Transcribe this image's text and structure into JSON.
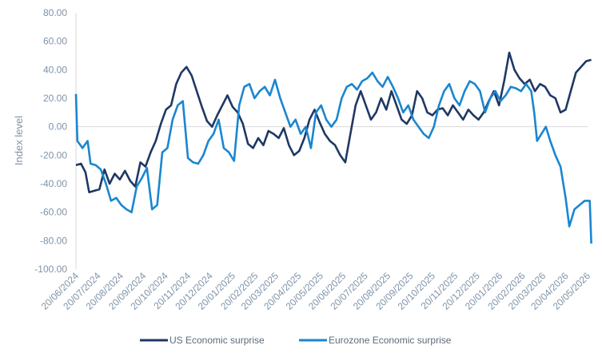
{
  "chart_data": {
    "type": "line",
    "ylabel": "Index level",
    "ylim": [
      -100,
      80
    ],
    "y_ticks": [
      "80.00",
      "60.00",
      "40.00",
      "20.00",
      "0.00",
      "-20.00",
      "-40.00",
      "-60.00",
      "-80.00",
      "-100.00"
    ],
    "y_tick_values": [
      80,
      60,
      40,
      20,
      0,
      -20,
      -40,
      -60,
      -80,
      -100
    ],
    "x_ticks": [
      "20/06/2024",
      "20/07/2024",
      "20/08/2024",
      "20/09/2024",
      "20/10/2024",
      "20/11/2024",
      "20/12/2024",
      "20/01/2025",
      "20/02/2025",
      "20/03/2025",
      "20/04/2025",
      "20/05/2025",
      "20/06/2025",
      "20/07/2025",
      "20/08/2025",
      "20/09/2025",
      "20/10/2025",
      "20/11/2025",
      "20/12/2025",
      "20/01/2026",
      "20/02/2026",
      "20/03/2026",
      "20/04/2026",
      "20/05/2026"
    ],
    "grid": false,
    "legend_position": "bottom",
    "series": [
      {
        "name": "US Economic surprise",
        "color": "#1f3864",
        "points": [
          [
            "2024-06-20",
            -27
          ],
          [
            "2024-06-27",
            -26
          ],
          [
            "2024-07-03",
            -32
          ],
          [
            "2024-07-08",
            -46
          ],
          [
            "2024-07-15",
            -45
          ],
          [
            "2024-07-22",
            -44
          ],
          [
            "2024-07-29",
            -30
          ],
          [
            "2024-08-05",
            -40
          ],
          [
            "2024-08-12",
            -33
          ],
          [
            "2024-08-19",
            -37
          ],
          [
            "2024-08-26",
            -31
          ],
          [
            "2024-09-02",
            -38
          ],
          [
            "2024-09-09",
            -42
          ],
          [
            "2024-09-16",
            -25
          ],
          [
            "2024-09-23",
            -28
          ],
          [
            "2024-09-30",
            -18
          ],
          [
            "2024-10-07",
            -10
          ],
          [
            "2024-10-14",
            2
          ],
          [
            "2024-10-21",
            12
          ],
          [
            "2024-10-28",
            15
          ],
          [
            "2024-11-04",
            30
          ],
          [
            "2024-11-11",
            38
          ],
          [
            "2024-11-18",
            42
          ],
          [
            "2024-11-25",
            36
          ],
          [
            "2024-12-02",
            25
          ],
          [
            "2024-12-09",
            14
          ],
          [
            "2024-12-16",
            4
          ],
          [
            "2024-12-23",
            0
          ],
          [
            "2024-12-30",
            8
          ],
          [
            "2025-01-06",
            15
          ],
          [
            "2025-01-13",
            22
          ],
          [
            "2025-01-20",
            14
          ],
          [
            "2025-01-27",
            10
          ],
          [
            "2025-02-03",
            2
          ],
          [
            "2025-02-10",
            -12
          ],
          [
            "2025-02-17",
            -15
          ],
          [
            "2025-02-24",
            -8
          ],
          [
            "2025-03-03",
            -13
          ],
          [
            "2025-03-10",
            -3
          ],
          [
            "2025-03-17",
            -5
          ],
          [
            "2025-03-24",
            -8
          ],
          [
            "2025-03-31",
            -1
          ],
          [
            "2025-04-07",
            -13
          ],
          [
            "2025-04-14",
            -20
          ],
          [
            "2025-04-21",
            -17
          ],
          [
            "2025-04-28",
            -8
          ],
          [
            "2025-05-05",
            5
          ],
          [
            "2025-05-12",
            12
          ],
          [
            "2025-05-19",
            3
          ],
          [
            "2025-05-26",
            -5
          ],
          [
            "2025-06-02",
            -10
          ],
          [
            "2025-06-09",
            -13
          ],
          [
            "2025-06-16",
            -20
          ],
          [
            "2025-06-23",
            -25
          ],
          [
            "2025-06-30",
            -5
          ],
          [
            "2025-07-07",
            15
          ],
          [
            "2025-07-14",
            25
          ],
          [
            "2025-07-21",
            15
          ],
          [
            "2025-07-28",
            5
          ],
          [
            "2025-08-04",
            10
          ],
          [
            "2025-08-11",
            20
          ],
          [
            "2025-08-18",
            12
          ],
          [
            "2025-08-25",
            25
          ],
          [
            "2025-09-01",
            15
          ],
          [
            "2025-09-08",
            5
          ],
          [
            "2025-09-15",
            2
          ],
          [
            "2025-09-22",
            8
          ],
          [
            "2025-09-29",
            25
          ],
          [
            "2025-10-06",
            20
          ],
          [
            "2025-10-13",
            10
          ],
          [
            "2025-10-20",
            8
          ],
          [
            "2025-10-27",
            12
          ],
          [
            "2025-11-03",
            13
          ],
          [
            "2025-11-10",
            8
          ],
          [
            "2025-11-17",
            15
          ],
          [
            "2025-11-24",
            10
          ],
          [
            "2025-12-01",
            5
          ],
          [
            "2025-12-08",
            12
          ],
          [
            "2025-12-15",
            8
          ],
          [
            "2025-12-22",
            5
          ],
          [
            "2025-12-29",
            10
          ],
          [
            "2026-01-05",
            18
          ],
          [
            "2026-01-12",
            25
          ],
          [
            "2026-01-19",
            15
          ],
          [
            "2026-01-26",
            32
          ],
          [
            "2026-02-02",
            52
          ],
          [
            "2026-02-09",
            40
          ],
          [
            "2026-02-16",
            34
          ],
          [
            "2026-02-23",
            30
          ],
          [
            "2026-03-02",
            33
          ],
          [
            "2026-03-09",
            25
          ],
          [
            "2026-03-16",
            30
          ],
          [
            "2026-03-23",
            28
          ],
          [
            "2026-03-30",
            22
          ],
          [
            "2026-04-06",
            20
          ],
          [
            "2026-04-13",
            10
          ],
          [
            "2026-04-20",
            12
          ],
          [
            "2026-04-27",
            25
          ],
          [
            "2026-05-04",
            38
          ],
          [
            "2026-05-11",
            42
          ],
          [
            "2026-05-18",
            46
          ],
          [
            "2026-05-25",
            47
          ]
        ]
      },
      {
        "name": "Eurozone Economic surprise",
        "color": "#1a86d0",
        "points": [
          [
            "2024-06-20",
            23
          ],
          [
            "2024-06-22",
            -10
          ],
          [
            "2024-06-29",
            -15
          ],
          [
            "2024-07-06",
            -10
          ],
          [
            "2024-07-10",
            -26
          ],
          [
            "2024-07-17",
            -27
          ],
          [
            "2024-07-24",
            -30
          ],
          [
            "2024-07-31",
            -40
          ],
          [
            "2024-08-07",
            -52
          ],
          [
            "2024-08-14",
            -50
          ],
          [
            "2024-08-21",
            -55
          ],
          [
            "2024-08-28",
            -58
          ],
          [
            "2024-09-04",
            -60
          ],
          [
            "2024-09-11",
            -42
          ],
          [
            "2024-09-18",
            -36
          ],
          [
            "2024-09-25",
            -29
          ],
          [
            "2024-10-02",
            -58
          ],
          [
            "2024-10-09",
            -55
          ],
          [
            "2024-10-16",
            -18
          ],
          [
            "2024-10-23",
            -15
          ],
          [
            "2024-10-30",
            5
          ],
          [
            "2024-11-06",
            15
          ],
          [
            "2024-11-13",
            18
          ],
          [
            "2024-11-20",
            -22
          ],
          [
            "2024-11-27",
            -25
          ],
          [
            "2024-12-04",
            -26
          ],
          [
            "2024-12-11",
            -20
          ],
          [
            "2024-12-18",
            -10
          ],
          [
            "2024-12-25",
            -5
          ],
          [
            "2025-01-01",
            5
          ],
          [
            "2025-01-08",
            -15
          ],
          [
            "2025-01-15",
            -18
          ],
          [
            "2025-01-22",
            -24
          ],
          [
            "2025-01-29",
            15
          ],
          [
            "2025-02-05",
            28
          ],
          [
            "2025-02-12",
            30
          ],
          [
            "2025-02-19",
            20
          ],
          [
            "2025-02-26",
            25
          ],
          [
            "2025-03-05",
            28
          ],
          [
            "2025-03-12",
            22
          ],
          [
            "2025-03-19",
            33
          ],
          [
            "2025-03-26",
            20
          ],
          [
            "2025-04-02",
            10
          ],
          [
            "2025-04-09",
            0
          ],
          [
            "2025-04-16",
            5
          ],
          [
            "2025-04-23",
            -5
          ],
          [
            "2025-04-30",
            0
          ],
          [
            "2025-05-07",
            -15
          ],
          [
            "2025-05-14",
            10
          ],
          [
            "2025-05-21",
            15
          ],
          [
            "2025-05-28",
            5
          ],
          [
            "2025-06-04",
            0
          ],
          [
            "2025-06-11",
            5
          ],
          [
            "2025-06-18",
            20
          ],
          [
            "2025-06-25",
            28
          ],
          [
            "2025-07-02",
            30
          ],
          [
            "2025-07-09",
            26
          ],
          [
            "2025-07-16",
            32
          ],
          [
            "2025-07-23",
            34
          ],
          [
            "2025-07-30",
            38
          ],
          [
            "2025-08-06",
            32
          ],
          [
            "2025-08-13",
            28
          ],
          [
            "2025-08-20",
            35
          ],
          [
            "2025-08-27",
            28
          ],
          [
            "2025-09-03",
            20
          ],
          [
            "2025-09-10",
            10
          ],
          [
            "2025-09-17",
            15
          ],
          [
            "2025-09-24",
            5
          ],
          [
            "2025-10-01",
            0
          ],
          [
            "2025-10-08",
            -5
          ],
          [
            "2025-10-15",
            -8
          ],
          [
            "2025-10-22",
            0
          ],
          [
            "2025-10-29",
            15
          ],
          [
            "2025-11-05",
            25
          ],
          [
            "2025-11-12",
            30
          ],
          [
            "2025-11-19",
            20
          ],
          [
            "2025-11-26",
            15
          ],
          [
            "2025-12-03",
            25
          ],
          [
            "2025-12-10",
            32
          ],
          [
            "2025-12-17",
            30
          ],
          [
            "2025-12-24",
            25
          ],
          [
            "2025-12-31",
            10
          ],
          [
            "2026-01-07",
            20
          ],
          [
            "2026-01-14",
            25
          ],
          [
            "2026-01-21",
            18
          ],
          [
            "2026-01-28",
            22
          ],
          [
            "2026-02-04",
            28
          ],
          [
            "2026-02-11",
            27
          ],
          [
            "2026-02-18",
            25
          ],
          [
            "2026-02-25",
            30
          ],
          [
            "2026-03-04",
            25
          ],
          [
            "2026-03-08",
            10
          ],
          [
            "2026-03-12",
            -10
          ],
          [
            "2026-03-18",
            -5
          ],
          [
            "2026-03-24",
            0
          ],
          [
            "2026-03-30",
            -10
          ],
          [
            "2026-04-06",
            -20
          ],
          [
            "2026-04-13",
            -28
          ],
          [
            "2026-04-20",
            -50
          ],
          [
            "2026-04-25",
            -70
          ],
          [
            "2026-05-02",
            -58
          ],
          [
            "2026-05-09",
            -55
          ],
          [
            "2026-05-16",
            -52
          ],
          [
            "2026-05-23",
            -52
          ],
          [
            "2026-05-25",
            -82
          ]
        ]
      }
    ]
  }
}
